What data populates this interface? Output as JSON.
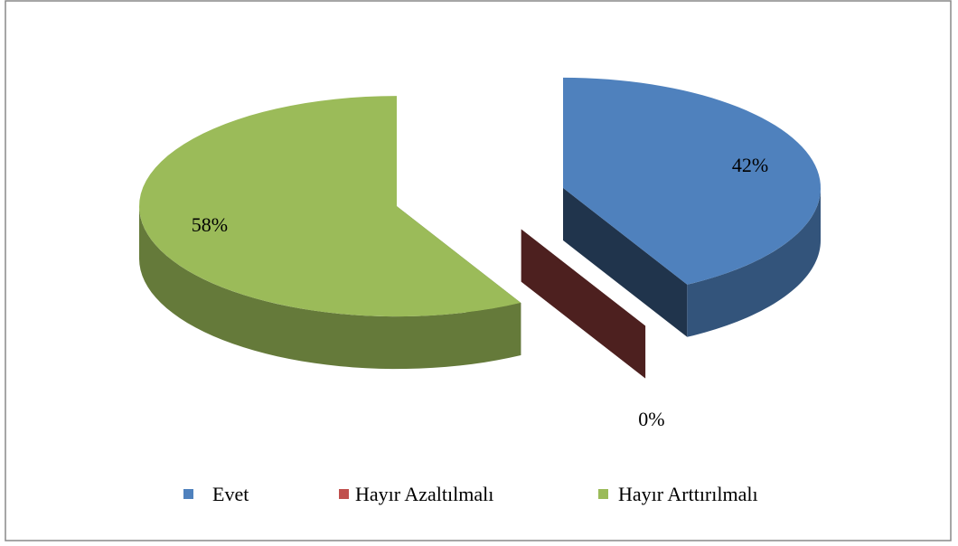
{
  "chart_data": {
    "type": "pie3d",
    "categories": [
      "Evet",
      "Hayır Azaltılmalı",
      "Hayır Arttırılmalı"
    ],
    "values": [
      42,
      0,
      58
    ],
    "value_labels": [
      "42%",
      "0%",
      "58%"
    ],
    "colors": [
      "#4f81bd",
      "#c0504d",
      "#9bbb59"
    ],
    "exploded": true,
    "legend": "bottom"
  }
}
